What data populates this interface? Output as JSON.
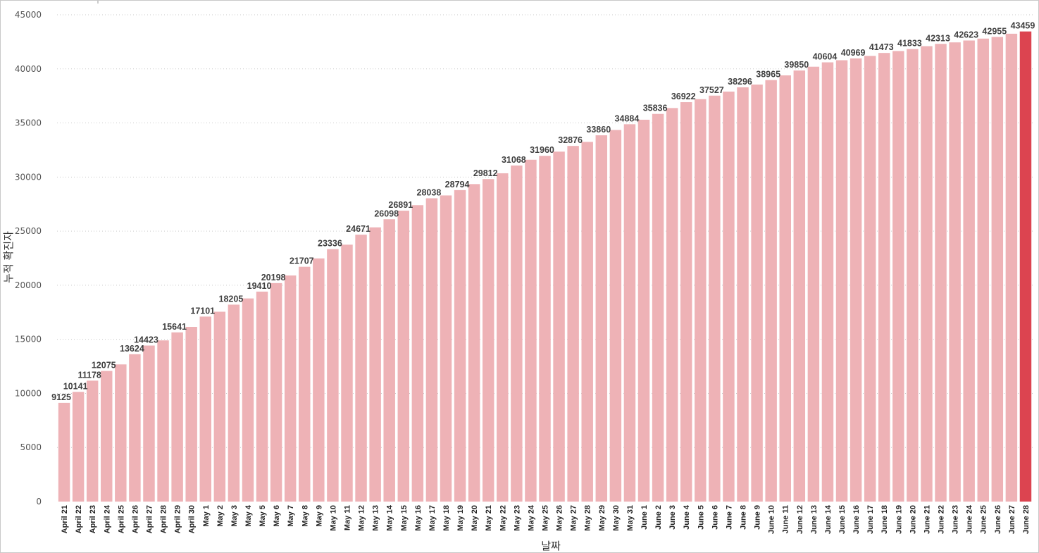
{
  "chart_data": {
    "type": "bar",
    "title": "",
    "xlabel": "날짜",
    "ylabel": "누적 확진자",
    "ylim": [
      0,
      45000
    ],
    "yticks": [
      0,
      5000,
      10000,
      15000,
      20000,
      25000,
      30000,
      35000,
      40000,
      45000
    ],
    "grid": true,
    "colors": {
      "bar": "#eeb2b6",
      "highlight": "#dc4450",
      "label": "#404040"
    },
    "highlight_category": "June 28",
    "categories": [
      "April 21",
      "April 22",
      "April 23",
      "April 24",
      "April 25",
      "April 26",
      "April 27",
      "April 28",
      "April 29",
      "April 30",
      "May 1",
      "May 2",
      "May 3",
      "May 4",
      "May 5",
      "May 6",
      "May 7",
      "May 8",
      "May 9",
      "May 10",
      "May 11",
      "May 12",
      "May 13",
      "May 14",
      "May 15",
      "May 16",
      "May 17",
      "May 18",
      "May 19",
      "May 20",
      "May 21",
      "May 22",
      "May 23",
      "May 24",
      "May 25",
      "May 26",
      "May 27",
      "May 28",
      "May 29",
      "May 30",
      "May 31",
      "June 1",
      "June 2",
      "June 3",
      "June 4",
      "June 5",
      "June 6",
      "June 7",
      "June 8",
      "June 9",
      "June 10",
      "June 11",
      "June 12",
      "June 13",
      "June 14",
      "June 15",
      "June 16",
      "June 17",
      "June 18",
      "June 19",
      "June 20",
      "June 21",
      "June 22",
      "June 23",
      "June 24",
      "June 25",
      "June 26",
      "June 27",
      "June 28"
    ],
    "values": [
      9125,
      10141,
      11178,
      12075,
      12680,
      13624,
      14423,
      14900,
      15641,
      16150,
      17101,
      17550,
      18205,
      18780,
      19410,
      20198,
      20900,
      21707,
      22480,
      23336,
      23750,
      24671,
      25350,
      26098,
      26891,
      27400,
      28038,
      28300,
      28794,
      29350,
      29812,
      30350,
      31068,
      31600,
      31960,
      32350,
      32876,
      33250,
      33860,
      34350,
      34884,
      35300,
      35836,
      36380,
      36922,
      37200,
      37527,
      37900,
      38296,
      38550,
      38965,
      39400,
      39850,
      40200,
      40604,
      40800,
      40969,
      41200,
      41473,
      41650,
      41833,
      42100,
      42313,
      42450,
      42623,
      42800,
      42955,
      43250,
      43459
    ],
    "data_labels": {
      "April 21": "9125",
      "April 22": "10141",
      "April 23": "11178",
      "April 24": "12075",
      "April 26": "13624",
      "April 27": "14423",
      "April 29": "15641",
      "May 1": "17101",
      "May 3": "18205",
      "May 5": "19410",
      "May 6": "20198",
      "May 8": "21707",
      "May 10": "23336",
      "May 12": "24671",
      "May 14": "26098",
      "May 15": "26891",
      "May 17": "28038",
      "May 19": "28794",
      "May 21": "29812",
      "May 23": "31068",
      "May 25": "31960",
      "May 27": "32876",
      "May 29": "33860",
      "May 31": "34884",
      "June 2": "35836",
      "June 4": "36922",
      "June 6": "37527",
      "June 8": "38296",
      "June 10": "38965",
      "June 12": "39850",
      "June 14": "40604",
      "June 16": "40969",
      "June 18": "41473",
      "June 20": "41833",
      "June 22": "42313",
      "June 24": "42623",
      "June 26": "42955",
      "June 28": "43459"
    }
  }
}
